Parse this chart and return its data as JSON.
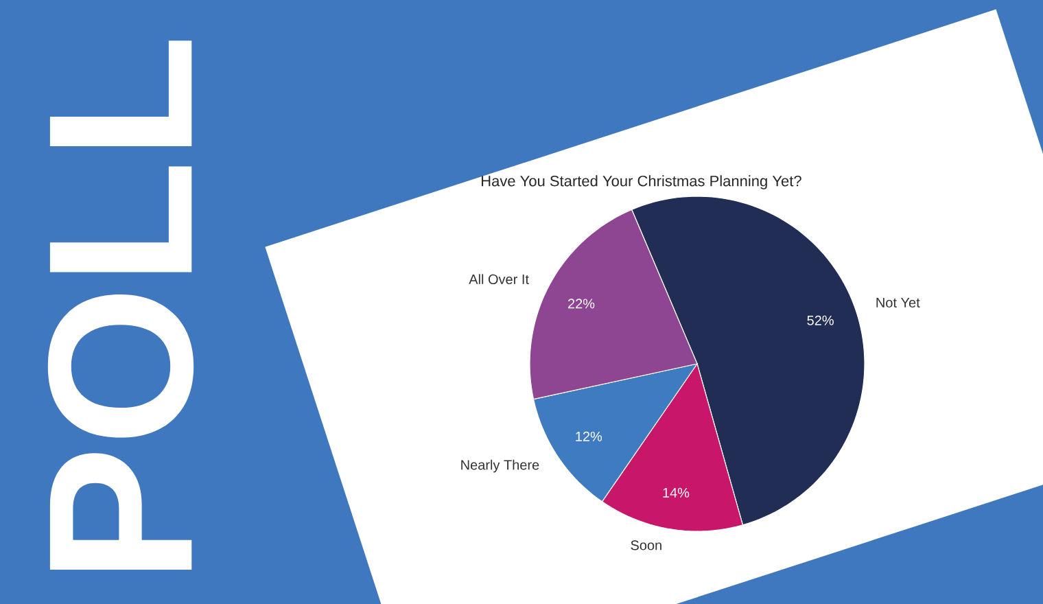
{
  "chart_data": {
    "type": "pie",
    "title": "Have You Started Your Christmas Planning Yet?",
    "categories": [
      "Not Yet",
      "Soon",
      "Nearly There",
      "All Over It"
    ],
    "values": [
      52,
      14,
      12,
      22
    ],
    "value_labels": [
      "52%",
      "14%",
      "12%",
      "22%"
    ],
    "colors": [
      "#222d56",
      "#c8166a",
      "#3f7bc1",
      "#8e4693"
    ],
    "annotations": [
      "POLL"
    ]
  }
}
